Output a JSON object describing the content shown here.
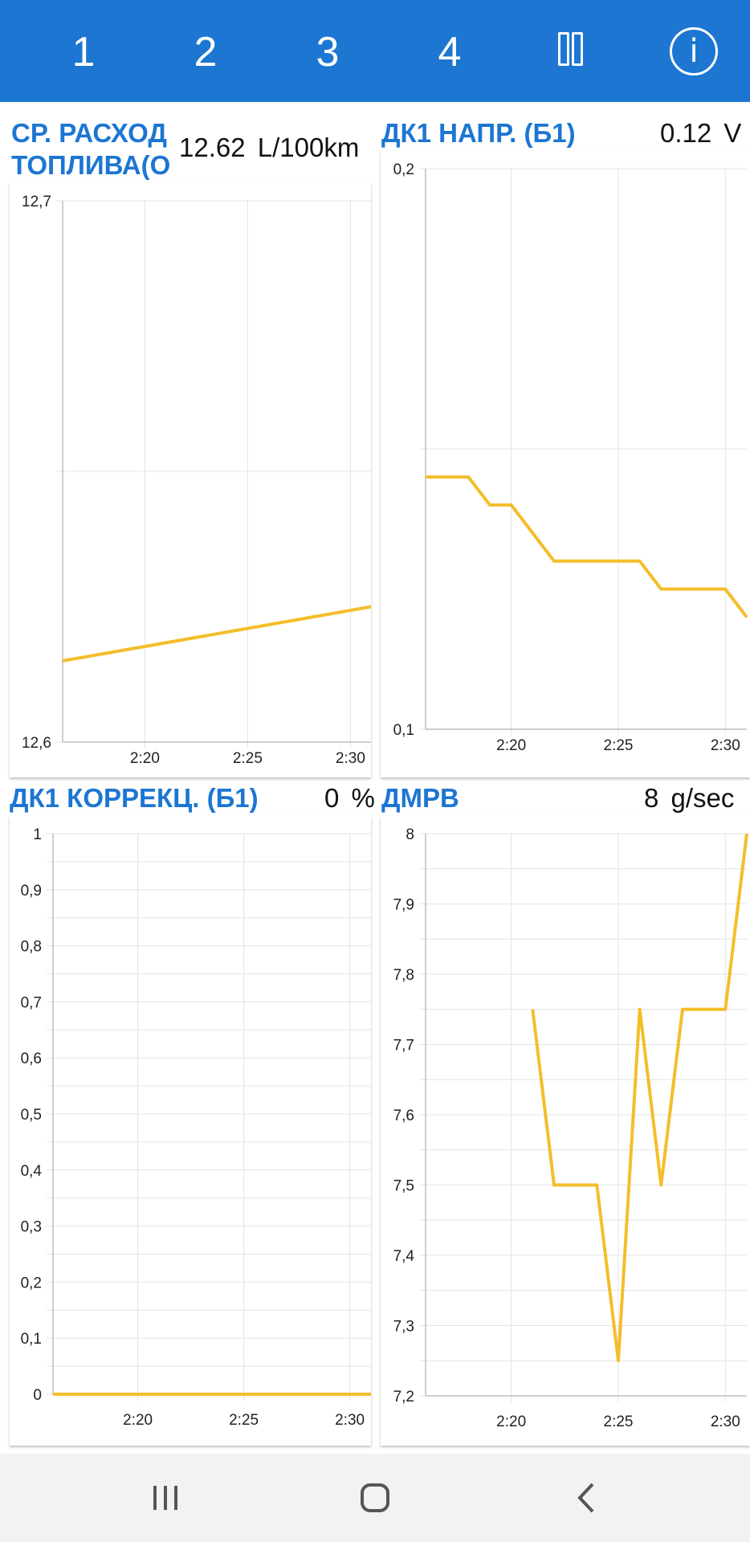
{
  "tabs": [
    "1",
    "2",
    "3",
    "4"
  ],
  "buttons": {
    "pause_icon": "pause-icon",
    "info_icon": "info-icon",
    "info_glyph": "i"
  },
  "colors": {
    "accent": "#1c76d2",
    "line": "#f4be2b",
    "grid": "#e4e4e4"
  },
  "panels": [
    {
      "title": "СР. РАСХОД ТОПЛИВА(О",
      "title_line1": "СР. РАСХОД",
      "title_line2": "ТОПЛИВА(О",
      "value": "12.62",
      "unit": "L/100km",
      "chart_data": {
        "type": "line",
        "x_tick_labels": [
          "2:20",
          "2:25",
          "2:30"
        ],
        "y_tick_labels": [
          "12,6",
          "12,7"
        ],
        "ylim": [
          12.6,
          12.7
        ],
        "x": [
          "2:16",
          "2:31"
        ],
        "values": [
          12.615,
          12.625
        ]
      }
    },
    {
      "title": "ДК1 НАПР. (Б1)",
      "value": "0.12",
      "unit": "V",
      "chart_data": {
        "type": "line",
        "x_tick_labels": [
          "2:20",
          "2:25",
          "2:30"
        ],
        "y_tick_labels": [
          "0,1",
          "0,2"
        ],
        "ylim": [
          0.1,
          0.2
        ],
        "x": [
          "2:16",
          "2:18",
          "2:19",
          "2:20",
          "2:22",
          "2:26",
          "2:27",
          "2:30",
          "2:31"
        ],
        "values": [
          0.145,
          0.145,
          0.14,
          0.14,
          0.13,
          0.13,
          0.125,
          0.125,
          0.12
        ]
      }
    },
    {
      "title": "ДК1 КОРРЕКЦ. (Б1)",
      "value": "0",
      "unit": "%",
      "chart_data": {
        "type": "line",
        "x_tick_labels": [
          "2:20",
          "2:25",
          "2:30"
        ],
        "y_tick_labels": [
          "0",
          "0,1",
          "0,2",
          "0,3",
          "0,4",
          "0,5",
          "0,6",
          "0,7",
          "0,8",
          "0,9",
          "1"
        ],
        "ylim": [
          0,
          1
        ],
        "x": [
          "2:16",
          "2:31"
        ],
        "values": [
          0,
          0
        ]
      }
    },
    {
      "title": "ДМРВ",
      "value": "8",
      "unit": "g/sec",
      "chart_data": {
        "type": "line",
        "x_tick_labels": [
          "2:20",
          "2:25",
          "2:30"
        ],
        "y_tick_labels": [
          "7,2",
          "7,3",
          "7,4",
          "7,5",
          "7,6",
          "7,7",
          "7,8",
          "7,9",
          "8"
        ],
        "ylim": [
          7.2,
          8
        ],
        "x": [
          "2:21",
          "2:22",
          "2:24",
          "2:25",
          "2:26",
          "2:27",
          "2:28",
          "2:30",
          "2:31"
        ],
        "values": [
          7.75,
          7.5,
          7.5,
          7.25,
          7.75,
          7.5,
          7.75,
          7.75,
          8
        ]
      }
    }
  ],
  "navbar": {
    "recent_icon": "recent-apps-icon",
    "home_icon": "home-icon",
    "back_icon": "back-icon"
  }
}
